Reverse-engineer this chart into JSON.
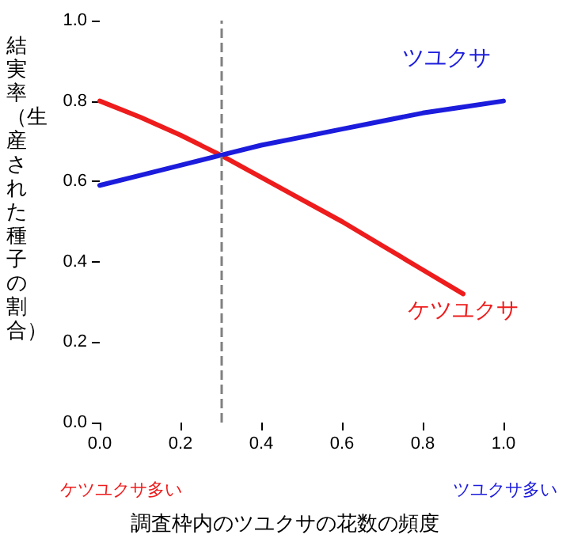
{
  "chart_data": {
    "type": "line",
    "xlabel": "調査枠内のツユクサの花数の頻度",
    "ylabel": "結実率（生産された種子の割合）",
    "x": [
      0,
      0.1,
      0.2,
      0.3,
      0.4,
      0.5,
      0.6,
      0.7,
      0.8,
      0.9,
      1.0
    ],
    "series": [
      {
        "name": "ケツユクサ",
        "color": "#ee1c1c",
        "values": [
          0.8,
          0.76,
          0.715,
          0.665,
          0.61,
          0.555,
          0.5,
          0.44,
          0.38,
          0.32,
          null
        ]
      },
      {
        "name": "ツユクサ",
        "color": "#1c1cdd",
        "values": [
          0.59,
          0.615,
          0.64,
          0.665,
          0.69,
          0.71,
          0.73,
          0.75,
          0.77,
          0.785,
          0.8
        ]
      }
    ],
    "xlim": [
      0,
      1
    ],
    "ylim": [
      0,
      1
    ],
    "xticks": [
      {
        "value": 0,
        "label": "0.0"
      },
      {
        "value": 0.2,
        "label": "0.2"
      },
      {
        "value": 0.4,
        "label": "0.4"
      },
      {
        "value": 0.6,
        "label": "0.6"
      },
      {
        "value": 0.8,
        "label": "0.8"
      },
      {
        "value": 1,
        "label": "1.0"
      }
    ],
    "yticks": [
      {
        "value": 0,
        "label": "0.0"
      },
      {
        "value": 0.2,
        "label": "0.2"
      },
      {
        "value": 0.4,
        "label": "0.4"
      },
      {
        "value": 0.6,
        "label": "0.6"
      },
      {
        "value": 0.8,
        "label": "0.8"
      },
      {
        "value": 1,
        "label": "1.0"
      }
    ],
    "ref_lines": [
      {
        "axis": "x",
        "value": 0.3,
        "color": "#808080",
        "line_style": "dashed"
      }
    ],
    "annotations": [
      "ケツユクサ多い",
      "ツユクサ多い"
    ],
    "grid": false,
    "legend": false,
    "marker": "none",
    "line_style": "solid"
  }
}
